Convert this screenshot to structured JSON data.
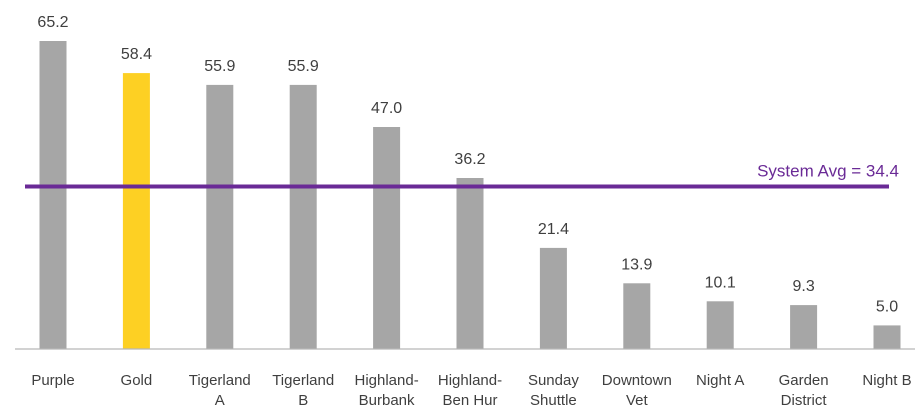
{
  "chart_data": {
    "type": "bar",
    "title": "",
    "xlabel": "",
    "ylabel": "",
    "ylim": [
      0,
      65.2
    ],
    "grid": false,
    "categories": [
      [
        "Purple"
      ],
      [
        "Gold"
      ],
      [
        "Tigerland",
        "A"
      ],
      [
        "Tigerland",
        "B"
      ],
      [
        "Highland-",
        "Burbank"
      ],
      [
        "Highland-",
        "Ben Hur"
      ],
      [
        "Sunday",
        "Shuttle"
      ],
      [
        "Downtown",
        "Vet"
      ],
      [
        "Night A"
      ],
      [
        "Garden",
        "District"
      ],
      [
        "Night B"
      ]
    ],
    "values": [
      65.2,
      58.4,
      55.9,
      55.9,
      47.0,
      36.2,
      21.4,
      13.9,
      10.1,
      9.3,
      5.0
    ],
    "value_labels": [
      "65.2",
      "58.4",
      "55.9",
      "55.9",
      "47.0",
      "36.2",
      "21.4",
      "13.9",
      "10.1",
      "9.3",
      "5.0"
    ],
    "highlight_index": 1,
    "reference_line": {
      "value": 34.4,
      "label": "System Avg = 34.4"
    },
    "colors": {
      "bar": "#a6a6a6",
      "highlight": "#fdd023",
      "reference_line": "#6a2a96",
      "axis": "#b7b7b7",
      "text": "#3f3f3f"
    }
  }
}
